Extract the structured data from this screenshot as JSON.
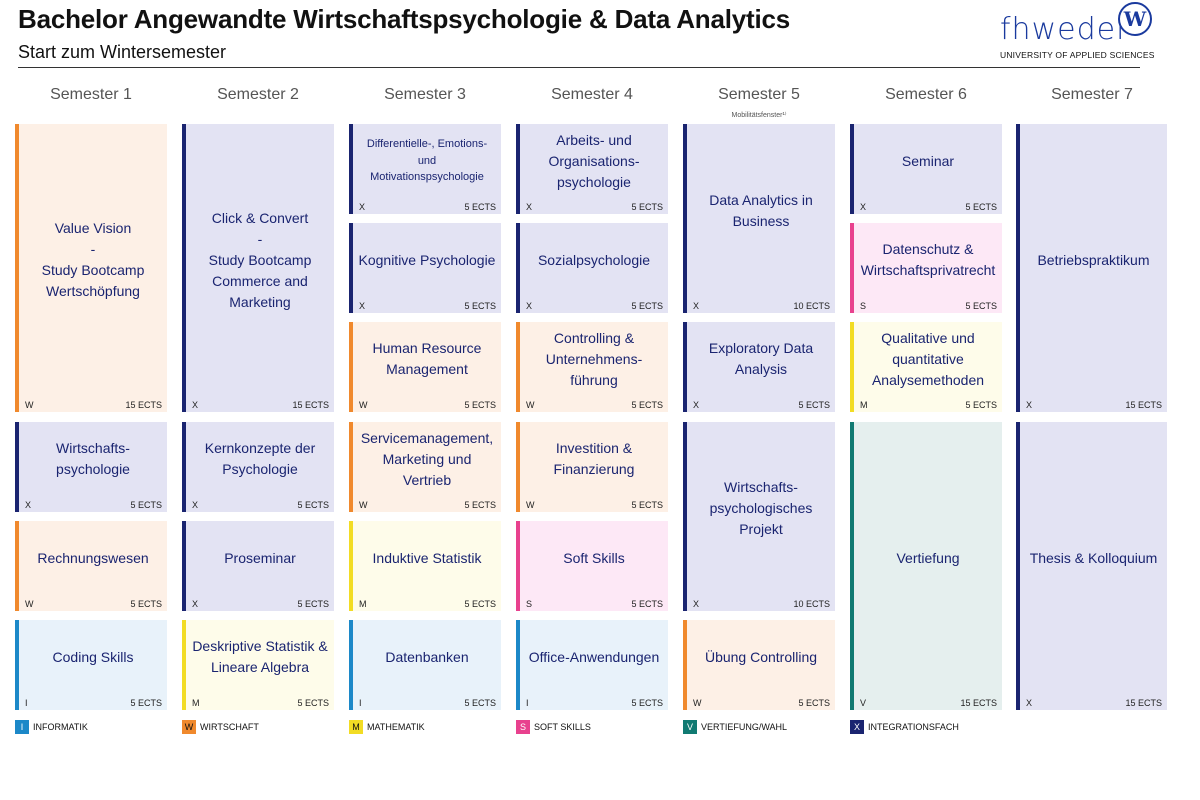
{
  "header": {
    "title": "Bachelor Angewandte Wirtschaftspsychologie & Data Analytics",
    "subtitle": "Start zum Wintersemester"
  },
  "logo": {
    "wordmark": "fhwedel",
    "emblem": "W",
    "tagline": "UNIVERSITY OF APPLIED SCIENCES"
  },
  "colors": {
    "X": "#1a2470",
    "W": "#f0892d",
    "M": "#f2dc24",
    "I": "#1c88c8",
    "S": "#e8418e",
    "V": "#117a72"
  },
  "semesters": [
    {
      "label": "Semester 1",
      "note": ""
    },
    {
      "label": "Semester 2",
      "note": ""
    },
    {
      "label": "Semester 3",
      "note": ""
    },
    {
      "label": "Semester 4",
      "note": ""
    },
    {
      "label": "Semester 5",
      "note": "Mobilitätsfenster¹⁾"
    },
    {
      "label": "Semester 6",
      "note": ""
    },
    {
      "label": "Semester 7",
      "note": ""
    }
  ],
  "modules": [
    {
      "name": "Value Vision\n-\nStudy Bootcamp\nWertschöpfung",
      "code": "W",
      "ects": "15 ECTS"
    },
    {
      "name": "Wirtschafts-\npsychologie",
      "code": "X",
      "ects": "5 ECTS"
    },
    {
      "name": "Rechnungswesen",
      "code": "W",
      "ects": "5 ECTS"
    },
    {
      "name": "Coding Skills",
      "code": "I",
      "ects": "5 ECTS"
    },
    {
      "name": "Click & Convert\n-\nStudy Bootcamp\nCommerce and\nMarketing",
      "code": "X",
      "ects": "15 ECTS"
    },
    {
      "name": "Kernkonzepte der\nPsychologie",
      "code": "X",
      "ects": "5 ECTS"
    },
    {
      "name": "Proseminar",
      "code": "X",
      "ects": "5 ECTS"
    },
    {
      "name": "Deskriptive Statistik &\nLineare Algebra",
      "code": "M",
      "ects": "5 ECTS"
    },
    {
      "name": "Differentielle-, Emotions-\nund\nMotivationspsychologie",
      "code": "X",
      "ects": "5 ECTS"
    },
    {
      "name": "Kognitive Psychologie",
      "code": "X",
      "ects": "5 ECTS"
    },
    {
      "name": "Human Resource\nManagement",
      "code": "W",
      "ects": "5 ECTS"
    },
    {
      "name": "Servicemanagement,\nMarketing und Vertrieb",
      "code": "W",
      "ects": "5 ECTS"
    },
    {
      "name": "Induktive Statistik",
      "code": "M",
      "ects": "5 ECTS"
    },
    {
      "name": "Datenbanken",
      "code": "I",
      "ects": "5 ECTS"
    },
    {
      "name": "Arbeits- und\nOrganisations-\npsychologie",
      "code": "X",
      "ects": "5 ECTS"
    },
    {
      "name": "Sozialpsychologie",
      "code": "X",
      "ects": "5 ECTS"
    },
    {
      "name": "Controlling &\nUnternehmens-\nführung",
      "code": "W",
      "ects": "5 ECTS"
    },
    {
      "name": "Investition &\nFinanzierung",
      "code": "W",
      "ects": "5 ECTS"
    },
    {
      "name": "Soft Skills",
      "code": "S",
      "ects": "5 ECTS"
    },
    {
      "name": "Office-Anwendungen",
      "code": "I",
      "ects": "5 ECTS"
    },
    {
      "name": "Data Analytics in\nBusiness",
      "code": "X",
      "ects": "10 ECTS"
    },
    {
      "name": "Exploratory Data\nAnalysis",
      "code": "X",
      "ects": "5 ECTS"
    },
    {
      "name": "Wirtschafts-\npsychologisches\nProjekt",
      "code": "X",
      "ects": "10 ECTS"
    },
    {
      "name": "Übung Controlling",
      "code": "W",
      "ects": "5 ECTS"
    },
    {
      "name": "Seminar",
      "code": "X",
      "ects": "5 ECTS"
    },
    {
      "name": "Datenschutz &\nWirtschaftsprivatrecht",
      "code": "S",
      "ects": "5 ECTS"
    },
    {
      "name": "Qualitative und\nquantitative\nAnalysemethoden",
      "code": "M",
      "ects": "5 ECTS"
    },
    {
      "name": "Vertiefung",
      "code": "V",
      "ects": "15 ECTS"
    },
    {
      "name": "Betriebspraktikum",
      "code": "X",
      "ects": "15 ECTS"
    },
    {
      "name": "Thesis & Kolloquium",
      "code": "X",
      "ects": "15 ECTS"
    }
  ],
  "legend": [
    {
      "code": "I",
      "label": "INFORMATIK"
    },
    {
      "code": "W",
      "label": "WIRTSCHAFT"
    },
    {
      "code": "M",
      "label": "MATHEMATIK"
    },
    {
      "code": "S",
      "label": "SOFT SKILLS"
    },
    {
      "code": "V",
      "label": "VERTIEFUNG/WAHL"
    },
    {
      "code": "X",
      "label": "INTEGRATIONSFACH"
    }
  ]
}
